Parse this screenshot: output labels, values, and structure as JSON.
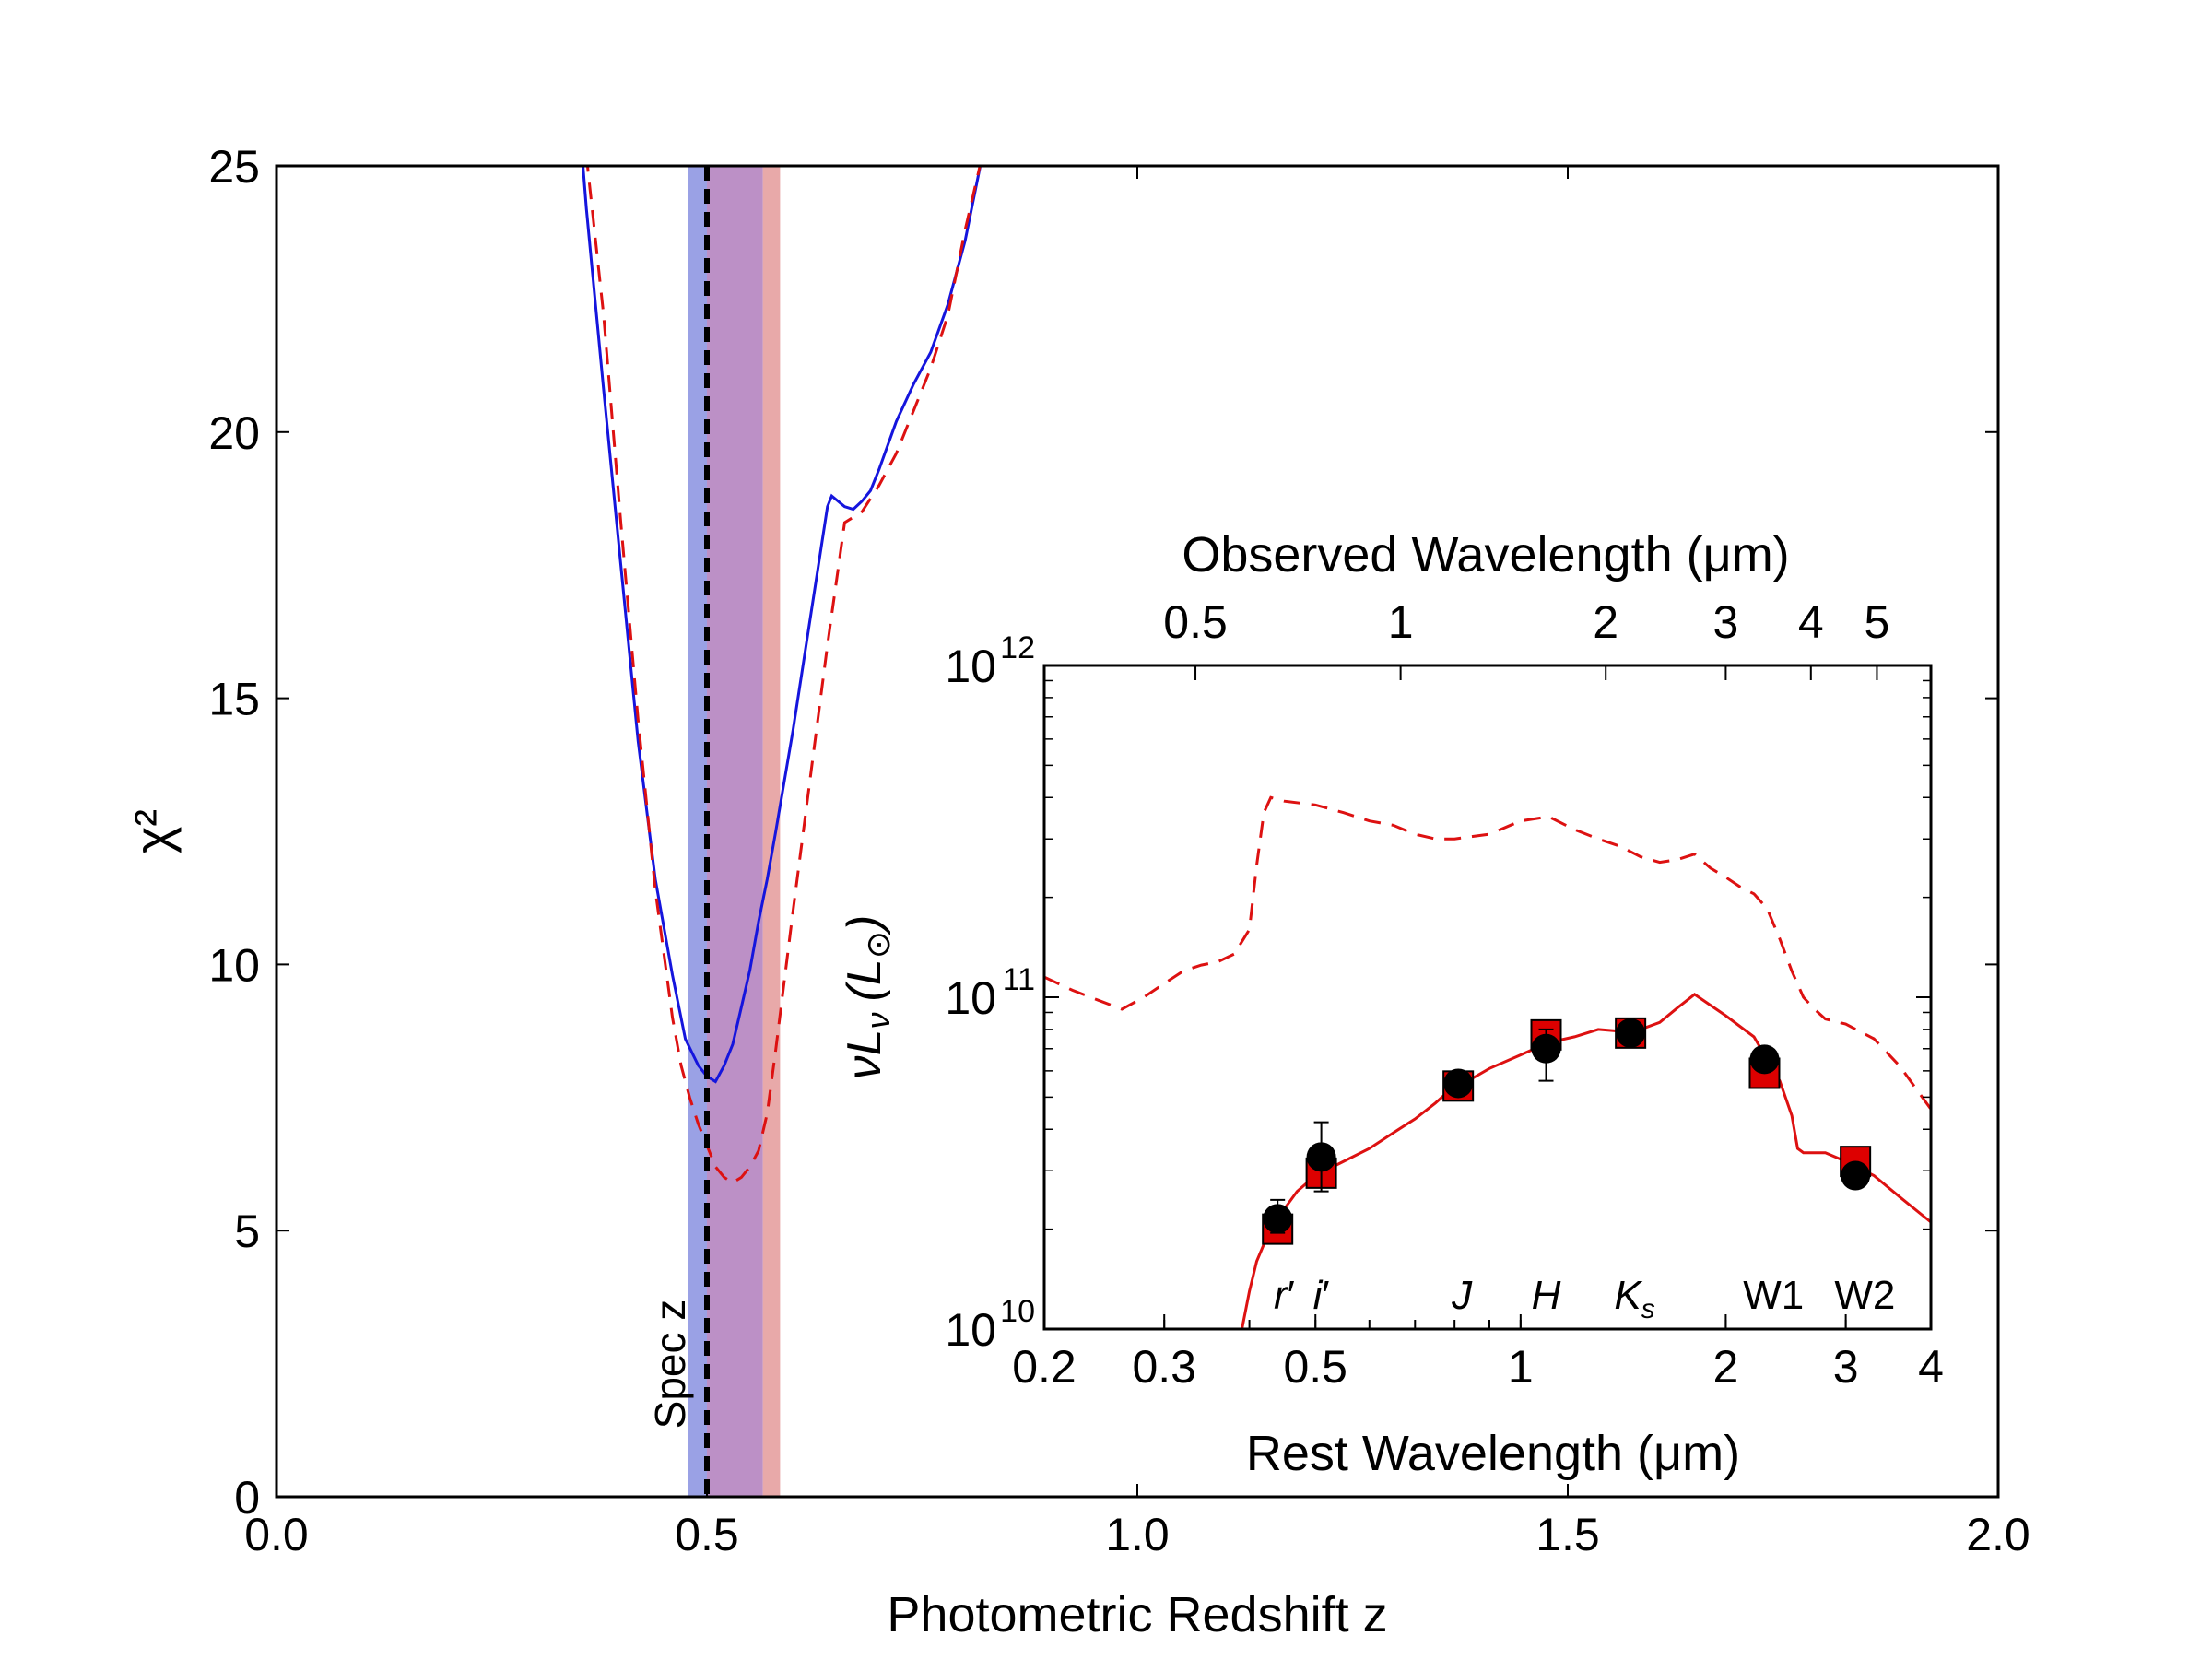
{
  "chart_data": [
    {
      "type": "line",
      "id": "main",
      "xlabel": "Photometric Redshift z",
      "ylabel": "χ²",
      "xlim": [
        0.0,
        2.0
      ],
      "ylim": [
        0,
        25
      ],
      "xticks": [
        "0.0",
        "0.5",
        "1.0",
        "1.5",
        "2.0"
      ],
      "yticks": [
        "0",
        "5",
        "10",
        "15",
        "20",
        "25"
      ],
      "spec_z": 0.5,
      "spec_z_label": "Spec z",
      "bands": [
        {
          "name": "blue-range",
          "x0": 0.478,
          "x1": 0.5,
          "color": "#8890e0"
        },
        {
          "name": "overlap-range",
          "x0": 0.5,
          "x1": 0.565,
          "color": "#b07cbc"
        },
        {
          "name": "red-range",
          "x0": 0.565,
          "x1": 0.585,
          "color": "#e49a9a"
        }
      ],
      "series": [
        {
          "name": "blue-solid",
          "color": "#1515dd",
          "dash": "solid",
          "x": [
            0.355,
            0.36,
            0.38,
            0.4,
            0.42,
            0.44,
            0.46,
            0.475,
            0.49,
            0.5,
            0.51,
            0.52,
            0.53,
            0.54,
            0.55,
            0.56,
            0.57,
            0.58,
            0.6,
            0.62,
            0.64,
            0.645,
            0.66,
            0.67,
            0.68,
            0.69,
            0.7,
            0.72,
            0.74,
            0.76,
            0.78,
            0.8,
            0.82
          ],
          "y": [
            25.2,
            24.2,
            20.8,
            17.5,
            14.2,
            11.6,
            9.8,
            8.6,
            8.1,
            7.9,
            7.8,
            8.1,
            8.5,
            9.2,
            9.9,
            10.8,
            11.6,
            12.5,
            14.4,
            16.5,
            18.6,
            18.8,
            18.6,
            18.55,
            18.7,
            18.9,
            19.3,
            20.2,
            20.9,
            21.5,
            22.4,
            23.6,
            25.2
          ]
        },
        {
          "name": "red-dashed",
          "color": "#dd1111",
          "dash": "dashed",
          "x": [
            0.36,
            0.38,
            0.4,
            0.42,
            0.44,
            0.46,
            0.47,
            0.48,
            0.49,
            0.5,
            0.51,
            0.52,
            0.53,
            0.54,
            0.55,
            0.56,
            0.57,
            0.58,
            0.6,
            0.62,
            0.64,
            0.66,
            0.68,
            0.7,
            0.72,
            0.74,
            0.76,
            0.78,
            0.8,
            0.82
          ],
          "y": [
            25.2,
            22.2,
            18.3,
            14.6,
            11.4,
            9.0,
            8.1,
            7.5,
            7.0,
            6.6,
            6.2,
            6.0,
            5.9,
            6.0,
            6.2,
            6.5,
            7.2,
            8.4,
            11.0,
            13.5,
            16.0,
            18.3,
            18.5,
            19.0,
            19.6,
            20.4,
            21.2,
            22.2,
            23.8,
            25.2
          ]
        }
      ]
    },
    {
      "type": "scatter",
      "id": "inset",
      "xscale": "log",
      "yscale": "log",
      "xlabel": "Rest Wavelength (μm)",
      "ylabel": "νL",
      "ylabel_sub": "ν",
      "ylabel_unit": "(L",
      "ylabel_unit_sym": "⊙",
      "ylabel_unit_close": ")",
      "top_xlabel": "Observed Wavelength (μm)",
      "xlim": [
        0.2,
        4.0
      ],
      "ylim_exp": [
        10,
        12
      ],
      "xticks": [
        {
          "value": 0.2,
          "label": "0.2"
        },
        {
          "value": 0.3,
          "label": "0.3"
        },
        {
          "value": 0.5,
          "label": "0.5"
        },
        {
          "value": 1.0,
          "label": "1"
        },
        {
          "value": 2.0,
          "label": "2"
        },
        {
          "value": 3.0,
          "label": "3"
        },
        {
          "value": 4.0,
          "label": "4"
        }
      ],
      "top_xticks": [
        {
          "value": 0.5,
          "label": "0.5"
        },
        {
          "value": 1.0,
          "label": "1"
        },
        {
          "value": 2.0,
          "label": "2"
        },
        {
          "value": 3.0,
          "label": "3"
        },
        {
          "value": 4.0,
          "label": "4"
        },
        {
          "value": 5.0,
          "label": "5"
        }
      ],
      "yticks": [
        {
          "exp": 10,
          "base": "10",
          "sup": "10"
        },
        {
          "exp": 11,
          "base": "10",
          "sup": "11"
        },
        {
          "exp": 12,
          "base": "10",
          "sup": "12"
        }
      ],
      "filters": [
        {
          "label": "r",
          "prime": "′",
          "x": 0.45
        },
        {
          "label": "i",
          "prime": "′",
          "x": 0.51
        },
        {
          "label": "J",
          "prime": "",
          "x": 0.82
        },
        {
          "label": "H",
          "prime": "",
          "x": 1.09
        },
        {
          "label": "K",
          "sub": "s",
          "x": 1.47
        },
        {
          "label": "W1",
          "prime": "",
          "x": 2.35
        },
        {
          "label": "W2",
          "prime": "",
          "x": 3.2
        }
      ],
      "points_circle": {
        "color": "#000000",
        "x": [
          0.44,
          0.51,
          0.81,
          1.09,
          1.45,
          2.28,
          3.1
        ],
        "y": [
          21500000000.0,
          33000000000.0,
          55000000000.0,
          70000000000.0,
          78000000000.0,
          65000000000.0,
          29000000000.0
        ],
        "err_low": [
          2000000000.0,
          7000000000.0,
          3000000000.0,
          14000000000.0,
          3000000000.0,
          3000000000.0,
          2000000000.0
        ],
        "err_high": [
          3000000000.0,
          9000000000.0,
          3000000000.0,
          10000000000.0,
          3000000000.0,
          3000000000.0,
          2000000000.0
        ]
      },
      "points_square": {
        "color": "#dd0000",
        "x": [
          0.44,
          0.51,
          0.81,
          1.09,
          1.45,
          2.28,
          3.1
        ],
        "y": [
          20000000000.0,
          29500000000.0,
          54000000000.0,
          77000000000.0,
          78000000000.0,
          59000000000.0,
          32000000000.0
        ]
      },
      "series": [
        {
          "name": "sed-solid",
          "color": "#dd1111",
          "dash": "solid",
          "x": [
            0.39,
            0.4,
            0.41,
            0.42,
            0.43,
            0.45,
            0.47,
            0.5,
            0.55,
            0.6,
            0.65,
            0.7,
            0.75,
            0.8,
            0.85,
            0.9,
            1.0,
            1.1,
            1.2,
            1.3,
            1.4,
            1.5,
            1.6,
            1.7,
            1.8,
            2.0,
            2.2,
            2.4,
            2.5,
            2.55,
            2.6,
            2.8,
            3.0,
            3.3,
            3.6,
            4.0
          ],
          "y": [
            10000000000.0,
            13000000000.0,
            16000000000.0,
            18000000000.0,
            19500000000.0,
            23000000000.0,
            26000000000.0,
            29000000000.0,
            32000000000.0,
            35000000000.0,
            39000000000.0,
            43000000000.0,
            48000000000.0,
            54000000000.0,
            57000000000.0,
            61000000000.0,
            67000000000.0,
            73000000000.0,
            76000000000.0,
            80000000000.0,
            79000000000.0,
            80000000000.0,
            84000000000.0,
            93000000000.0,
            102000000000.0,
            88000000000.0,
            76000000000.0,
            56000000000.0,
            44000000000.0,
            35000000000.0,
            34000000000.0,
            34000000000.0,
            32000000000.0,
            29000000000.0,
            25000000000.0,
            21000000000.0
          ]
        },
        {
          "name": "sed-dashed",
          "color": "#dd1111",
          "dash": "dashed",
          "x": [
            0.2,
            0.22,
            0.24,
            0.26,
            0.28,
            0.3,
            0.32,
            0.34,
            0.36,
            0.38,
            0.4,
            0.41,
            0.42,
            0.43,
            0.45,
            0.5,
            0.55,
            0.6,
            0.65,
            0.7,
            0.75,
            0.8,
            0.9,
            1.0,
            1.1,
            1.2,
            1.3,
            1.4,
            1.5,
            1.6,
            1.7,
            1.8,
            1.9,
            2.0,
            2.1,
            2.2,
            2.3,
            2.4,
            2.5,
            2.6,
            2.7,
            2.8,
            3.0,
            3.3,
            3.6,
            4.0
          ],
          "y": [
            115000000000.0,
            105000000000.0,
            98000000000.0,
            92000000000.0,
            100000000000.0,
            110000000000.0,
            120000000000.0,
            125000000000.0,
            128000000000.0,
            135000000000.0,
            160000000000.0,
            250000000000.0,
            360000000000.0,
            400000000000.0,
            390000000000.0,
            380000000000.0,
            360000000000.0,
            340000000000.0,
            330000000000.0,
            310000000000.0,
            300000000000.0,
            300000000000.0,
            310000000000.0,
            340000000000.0,
            350000000000.0,
            320000000000.0,
            300000000000.0,
            285000000000.0,
            265000000000.0,
            255000000000.0,
            260000000000.0,
            270000000000.0,
            245000000000.0,
            230000000000.0,
            215000000000.0,
            205000000000.0,
            185000000000.0,
            150000000000.0,
            120000000000.0,
            100000000000.0,
            92000000000.0,
            86000000000.0,
            83000000000.0,
            75000000000.0,
            62000000000.0,
            46000000000.0
          ]
        }
      ]
    }
  ]
}
